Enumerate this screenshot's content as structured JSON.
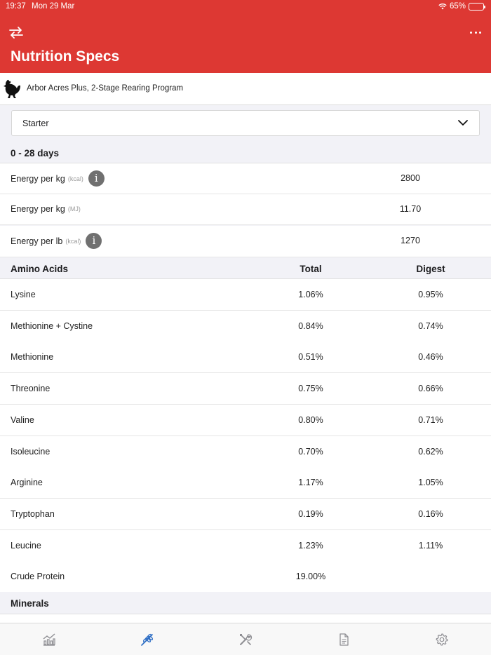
{
  "status_bar": {
    "time": "19:37",
    "date": "Mon 29 Mar",
    "battery": "65%",
    "battery_level": 0.65
  },
  "header": {
    "title": "Nutrition Specs",
    "swap_icon": "swap-arrows-icon",
    "more_icon": "more-dots-icon"
  },
  "program": {
    "icon": "hen-icon",
    "label": "Arbor Acres Plus, 2-Stage Rearing Program"
  },
  "phase_select": {
    "value": "Starter"
  },
  "period": {
    "label": "0 - 28 days"
  },
  "energy": [
    {
      "label": "Energy per kg",
      "unit": "(kcal)",
      "value": "2800",
      "info": true
    },
    {
      "label": "Energy per kg",
      "unit": "(MJ)",
      "value": "11.70",
      "info": false
    },
    {
      "label": "Energy per lb",
      "unit": "(kcal)",
      "value": "1270",
      "info": true
    }
  ],
  "amino_acids": {
    "header": {
      "label": "Amino Acids",
      "total": "Total",
      "digest": "Digest"
    },
    "rows": [
      {
        "name": "Lysine",
        "total": "1.06%",
        "digest": "0.95%"
      },
      {
        "name": "Methionine + Cystine",
        "total": "0.84%",
        "digest": "0.74%"
      },
      {
        "name": "Methionine",
        "total": "0.51%",
        "digest": "0.46%"
      },
      {
        "name": "Threonine",
        "total": "0.75%",
        "digest": "0.66%"
      },
      {
        "name": "Valine",
        "total": "0.80%",
        "digest": "0.71%"
      },
      {
        "name": "Isoleucine",
        "total": "0.70%",
        "digest": "0.62%"
      },
      {
        "name": "Arginine",
        "total": "1.17%",
        "digest": "1.05%"
      },
      {
        "name": "Tryptophan",
        "total": "0.19%",
        "digest": "0.16%"
      },
      {
        "name": "Leucine",
        "total": "1.23%",
        "digest": "1.11%"
      },
      {
        "name": "Crude Protein",
        "total": "19.00%",
        "digest": ""
      }
    ]
  },
  "minerals": {
    "label": "Minerals"
  },
  "tabbar": {
    "tabs": [
      {
        "icon": "performance-chart-icon",
        "active": false
      },
      {
        "icon": "feed-grain-icon",
        "active": true
      },
      {
        "icon": "tools-icon",
        "active": false
      },
      {
        "icon": "document-icon",
        "active": false
      },
      {
        "icon": "settings-gear-icon",
        "active": false
      }
    ]
  },
  "colors": {
    "brand": "#dd3833",
    "active_tab": "#2b6cc4",
    "inactive_tab": "#8e8e93"
  }
}
